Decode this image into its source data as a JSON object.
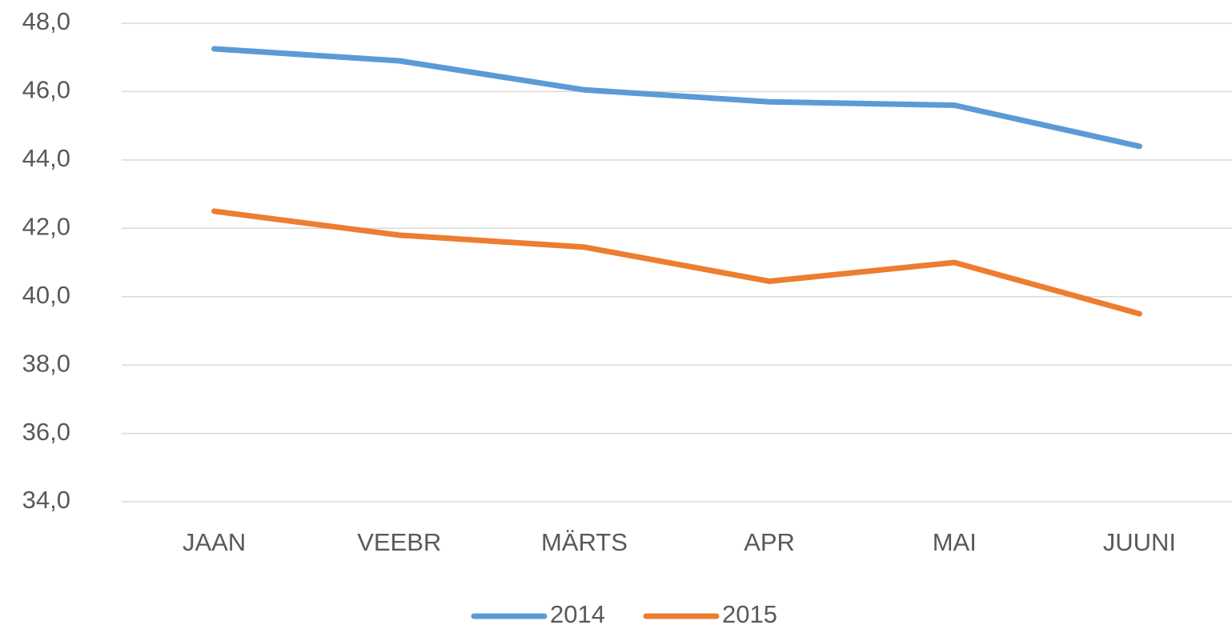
{
  "chart_data": {
    "type": "line",
    "categories": [
      "JAAN",
      "VEEBR",
      "MÄRTS",
      "APR",
      "MAI",
      "JUUNI"
    ],
    "series": [
      {
        "name": "2014",
        "color": "#5b9bd5",
        "values": [
          47.25,
          46.9,
          46.05,
          45.7,
          45.6,
          44.4
        ]
      },
      {
        "name": "2015",
        "color": "#ed7d31",
        "values": [
          42.5,
          41.8,
          41.45,
          40.45,
          41.0,
          39.5
        ]
      }
    ],
    "ylim": [
      34,
      48
    ],
    "yticks": [
      {
        "value": 34,
        "label": "34,0"
      },
      {
        "value": 36,
        "label": "36,0"
      },
      {
        "value": 38,
        "label": "38,0"
      },
      {
        "value": 40,
        "label": "40,0"
      },
      {
        "value": 42,
        "label": "42,0"
      },
      {
        "value": 44,
        "label": "44,0"
      },
      {
        "value": 46,
        "label": "46,0"
      },
      {
        "value": 48,
        "label": "48,0"
      }
    ],
    "grid": true,
    "legend": "bottom"
  }
}
